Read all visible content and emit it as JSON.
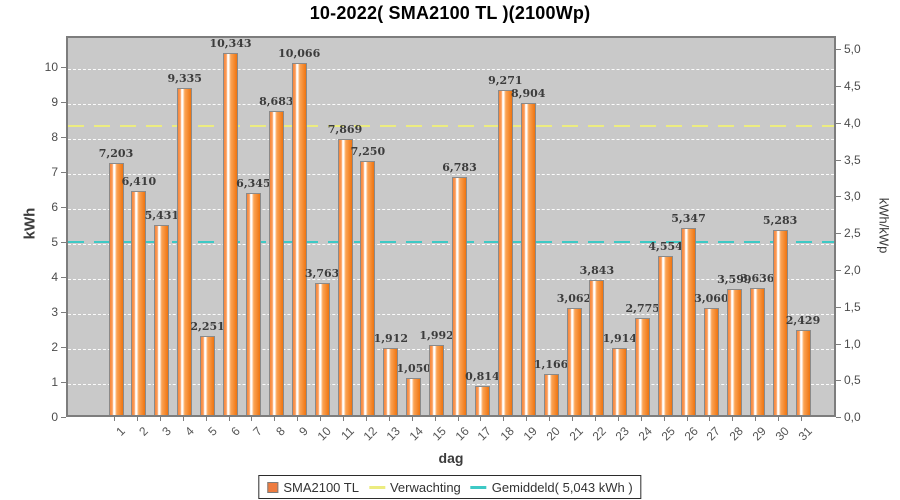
{
  "chart_data": {
    "type": "bar",
    "title": "10-2022( SMA2100 TL )(2100Wp)",
    "xlabel": "dag",
    "categories": [
      "1",
      "2",
      "3",
      "4",
      "5",
      "6",
      "7",
      "8",
      "9",
      "10",
      "11",
      "12",
      "13",
      "14",
      "15",
      "16",
      "17",
      "18",
      "19",
      "20",
      "21",
      "22",
      "23",
      "24",
      "25",
      "26",
      "27",
      "28",
      "29",
      "30",
      "31"
    ],
    "series": [
      {
        "name": "SMA2100 TL",
        "values": [
          7.203,
          6.41,
          5.431,
          9.335,
          2.251,
          10.343,
          6.345,
          8.683,
          10.066,
          3.763,
          7.869,
          7.25,
          1.912,
          1.05,
          1.992,
          6.783,
          0.814,
          9.271,
          8.904,
          1.166,
          3.062,
          3.843,
          1.914,
          2.775,
          4.554,
          5.347,
          3.06,
          3.599,
          3.636,
          5.283,
          2.429
        ],
        "value_labels": [
          "7,203",
          "6,410",
          "5,431",
          "9,335",
          "2,251",
          "10,343",
          "6,345",
          "8,683",
          "10,066",
          "3,763",
          "7,869",
          "7,250",
          "1,912",
          "1,050",
          "1,992",
          "6,783",
          "0,814",
          "9,271",
          "8,904",
          "1,166",
          "3,062",
          "3,843",
          "1,914",
          "2,775",
          "4,554",
          "5,347",
          "3,060",
          "3,599",
          "3,636",
          "5,283",
          "2,429"
        ],
        "bar_color": "#f08030",
        "unit": "kWh"
      }
    ],
    "reference_lines": [
      {
        "name": "Verwachting",
        "value_kwh": 8.36,
        "color": "#ecec80",
        "style": "dashed"
      },
      {
        "name": "Gemiddeld",
        "value_kwh": 5.043,
        "color": "#3ec9c5",
        "style": "dashed"
      }
    ],
    "left_axis": {
      "label": "kWh",
      "tick_labels": [
        "0",
        "1",
        "2",
        "3",
        "4",
        "5",
        "6",
        "7",
        "8",
        "9",
        "10"
      ],
      "tick_values": [
        0,
        1,
        2,
        3,
        4,
        5,
        6,
        7,
        8,
        9,
        10
      ],
      "min": 0,
      "max": 10.88,
      "grid": true
    },
    "right_axis": {
      "label": "kWh/kWp",
      "tick_labels": [
        "0,0",
        "0,5",
        "1,0",
        "1,5",
        "2,0",
        "2,5",
        "3,0",
        "3,5",
        "4,0",
        "4,5",
        "5,0"
      ],
      "tick_values": [
        0,
        0.5,
        1,
        1.5,
        2,
        2.5,
        3,
        3.5,
        4,
        4.5,
        5
      ],
      "kwh_per_unit": 2.1
    },
    "legend": {
      "position": "bottom-center",
      "items": [
        {
          "label": "SMA2100 TL",
          "swatch": "square",
          "color": "#ee7b3f"
        },
        {
          "label": "Verwachting",
          "swatch": "line",
          "color": "#ecec80"
        },
        {
          "label": "Gemiddeld( 5,043 kWh )",
          "swatch": "line",
          "color": "#3ec9c5"
        }
      ]
    },
    "plot_background": "#c9c9c9",
    "gridline_color": "#ffffff"
  }
}
